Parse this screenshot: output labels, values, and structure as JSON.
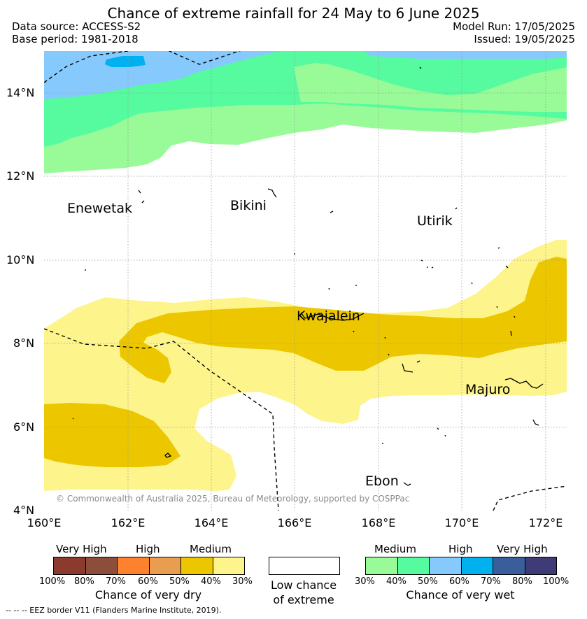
{
  "title": "Chance of extreme rainfall for 24 May to 6 June 2025",
  "header": {
    "data_source": "Data source: ACCESS-S2",
    "base_period": "Base period: 1981-2018",
    "model_run": "Model Run: 17/05/2025",
    "issued": "Issued: 19/05/2025"
  },
  "map": {
    "lat_ticks": [
      "14°N",
      "12°N",
      "10°N",
      "8°N",
      "6°N",
      "4°N"
    ],
    "lon_ticks": [
      "160°E",
      "162°E",
      "164°E",
      "166°E",
      "168°E",
      "170°E",
      "172°E"
    ],
    "places": [
      "Enewetak",
      "Bikini",
      "Utirik",
      "Kwajalein",
      "Majuro",
      "Ebon"
    ],
    "copyright": "© Commonwealth of Australia 2025, Bureau of Meteorology, supported by COSPPac",
    "colors": {
      "dry_30_40": "#fdf48c",
      "dry_40_50": "#ecc700",
      "wet_30_40": "#98fb98",
      "wet_40_50": "#55fb9e",
      "wet_50_60": "#86c9fc",
      "wet_60_70": "#00b0ef"
    }
  },
  "legend": {
    "dry": {
      "categories": [
        "Very High",
        "High",
        "Medium"
      ],
      "percents": [
        "100%",
        "80%",
        "70%",
        "60%",
        "50%",
        "40%",
        "30%"
      ],
      "colors": [
        "#8c3a2d",
        "#8c4e3a",
        "#fe812e",
        "#e99d4e",
        "#ecc700",
        "#fdf48c"
      ],
      "caption": "Chance of very dry"
    },
    "low": {
      "line1": "Low chance",
      "line2": "of extreme",
      "color": "#ffffff"
    },
    "wet": {
      "categories": [
        "Medium",
        "High",
        "Very High"
      ],
      "percents": [
        "30%",
        "40%",
        "50%",
        "60%",
        "70%",
        "80%",
        "100%"
      ],
      "colors": [
        "#98fb98",
        "#55fb9e",
        "#86c9fc",
        "#00b0ef",
        "#3a5d9c",
        "#3f3b76"
      ],
      "caption": "Chance of very wet"
    }
  },
  "eez_note": "-- -- -- EEZ border V11 (Flanders Marine Institute, 2019)."
}
